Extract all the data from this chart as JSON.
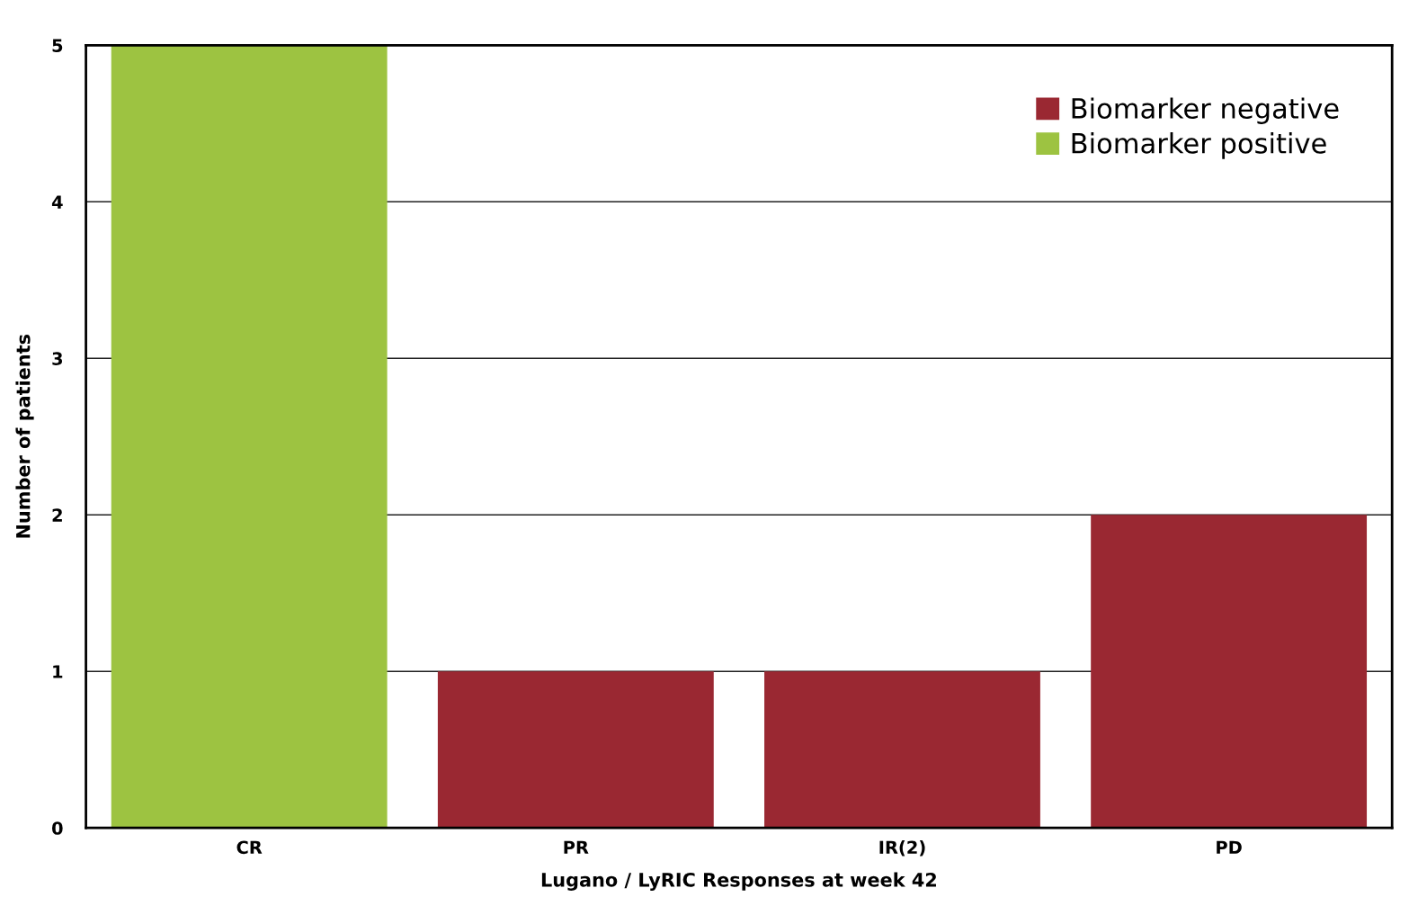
{
  "chart_data": {
    "type": "bar",
    "xlabel": "Lugano / LyRIC Responses at week 42",
    "ylabel": "Number of patients",
    "categories": [
      "CR",
      "PR",
      "IR(2)",
      "PD"
    ],
    "series": [
      {
        "name": "Biomarker negative",
        "color": "#9a2832",
        "values": [
          null,
          1,
          1,
          2
        ]
      },
      {
        "name": "Biomarker positive",
        "color": "#9dc341",
        "values": [
          5,
          null,
          null,
          null
        ]
      }
    ],
    "ylim": [
      0,
      5
    ],
    "yticks": [
      0,
      1,
      2,
      3,
      4,
      5
    ],
    "grid": "y",
    "legend": "top right"
  }
}
